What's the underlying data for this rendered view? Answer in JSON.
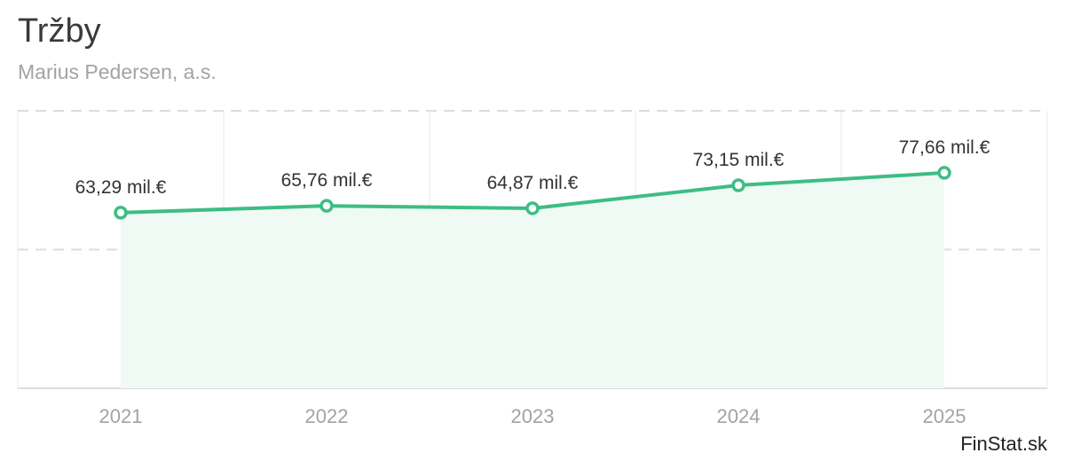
{
  "header": {
    "title": "Tržby",
    "subtitle": "Marius Pedersen, a.s."
  },
  "watermark": "FinStat.sk",
  "colors": {
    "line": "#3dbd84",
    "area": "#f0faf5",
    "grid": "#dddddd",
    "axis_text": "#a3a3a3",
    "label_text": "#333333"
  },
  "chart_data": {
    "type": "area",
    "categories": [
      "2021",
      "2022",
      "2023",
      "2024",
      "2025"
    ],
    "values": [
      63.29,
      65.76,
      64.87,
      73.15,
      77.66
    ],
    "data_labels": [
      "63,29 mil.€",
      "65,76 mil.€",
      "64,87 mil.€",
      "73,15 mil.€",
      "77,66 mil.€"
    ],
    "ylim": [
      0,
      100
    ],
    "grid": true,
    "legend": "none"
  }
}
